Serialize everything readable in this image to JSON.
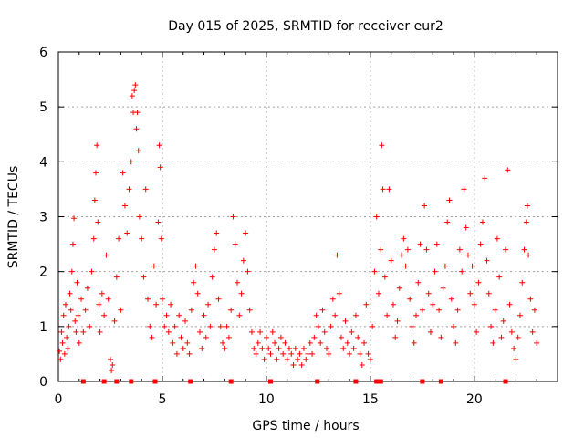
{
  "chart_data": {
    "type": "scatter",
    "title": "Day 015 of 2025, SRMTID for receiver eur2",
    "xlabel": "GPS time / hours",
    "ylabel": "SRMTID / TECUs",
    "xlim": [
      0,
      24
    ],
    "ylim": [
      0,
      6
    ],
    "xticks": [
      0,
      5,
      10,
      15,
      20
    ],
    "yticks": [
      0,
      1,
      2,
      3,
      4,
      5,
      6
    ],
    "grid": true,
    "marker": "+",
    "color": "#ff0000",
    "series": [
      {
        "name": "SRMTID",
        "points": [
          [
            0.05,
            0.55
          ],
          [
            0.1,
            0.4
          ],
          [
            0.15,
            0.9
          ],
          [
            0.2,
            0.7
          ],
          [
            0.25,
            1.2
          ],
          [
            0.3,
            0.5
          ],
          [
            0.35,
            1.4
          ],
          [
            0.4,
            0.8
          ],
          [
            0.45,
            0.6
          ],
          [
            0.5,
            1.0
          ],
          [
            0.55,
            1.6
          ],
          [
            0.6,
            1.3
          ],
          [
            0.65,
            2.0
          ],
          [
            0.7,
            2.5
          ],
          [
            0.75,
            2.97
          ],
          [
            0.8,
            1.1
          ],
          [
            0.85,
            0.9
          ],
          [
            0.9,
            1.8
          ],
          [
            0.95,
            1.2
          ],
          [
            1.0,
            0.7
          ],
          [
            1.1,
            1.5
          ],
          [
            1.2,
            0.9
          ],
          [
            1.3,
            1.3
          ],
          [
            1.4,
            1.7
          ],
          [
            1.5,
            1.0
          ],
          [
            1.6,
            2.0
          ],
          [
            1.7,
            2.6
          ],
          [
            1.75,
            3.3
          ],
          [
            1.8,
            3.8
          ],
          [
            1.85,
            4.3
          ],
          [
            1.9,
            2.9
          ],
          [
            1.95,
            1.4
          ],
          [
            2.0,
            0.9
          ],
          [
            2.1,
            1.6
          ],
          [
            2.2,
            1.2
          ],
          [
            2.3,
            2.3
          ],
          [
            2.4,
            1.5
          ],
          [
            2.5,
            0.4
          ],
          [
            2.55,
            0.2
          ],
          [
            2.6,
            0.3
          ],
          [
            2.7,
            1.1
          ],
          [
            2.8,
            1.9
          ],
          [
            2.9,
            2.6
          ],
          [
            3.0,
            1.3
          ],
          [
            3.1,
            3.8
          ],
          [
            3.2,
            3.2
          ],
          [
            3.3,
            2.7
          ],
          [
            3.4,
            3.5
          ],
          [
            3.5,
            4.0
          ],
          [
            3.55,
            5.2
          ],
          [
            3.6,
            4.9
          ],
          [
            3.65,
            5.3
          ],
          [
            3.7,
            5.4
          ],
          [
            3.75,
            4.6
          ],
          [
            3.8,
            4.9
          ],
          [
            3.85,
            4.2
          ],
          [
            3.9,
            3.0
          ],
          [
            4.0,
            2.6
          ],
          [
            4.1,
            1.9
          ],
          [
            4.2,
            3.5
          ],
          [
            4.3,
            1.5
          ],
          [
            4.4,
            1.0
          ],
          [
            4.5,
            0.8
          ],
          [
            4.6,
            2.1
          ],
          [
            4.7,
            1.4
          ],
          [
            4.8,
            2.9
          ],
          [
            4.85,
            4.3
          ],
          [
            4.9,
            3.9
          ],
          [
            4.95,
            2.6
          ],
          [
            5.0,
            1.5
          ],
          [
            5.1,
            1.0
          ],
          [
            5.2,
            1.2
          ],
          [
            5.3,
            0.9
          ],
          [
            5.4,
            1.4
          ],
          [
            5.5,
            0.7
          ],
          [
            5.6,
            1.0
          ],
          [
            5.7,
            0.5
          ],
          [
            5.8,
            1.2
          ],
          [
            5.9,
            0.8
          ],
          [
            6.0,
            0.6
          ],
          [
            6.1,
            1.1
          ],
          [
            6.2,
            0.7
          ],
          [
            6.3,
            0.5
          ],
          [
            6.4,
            1.3
          ],
          [
            6.5,
            1.8
          ],
          [
            6.6,
            2.1
          ],
          [
            6.7,
            1.6
          ],
          [
            6.8,
            0.9
          ],
          [
            6.9,
            0.6
          ],
          [
            7.0,
            1.2
          ],
          [
            7.1,
            0.8
          ],
          [
            7.2,
            1.4
          ],
          [
            7.3,
            1.0
          ],
          [
            7.4,
            1.9
          ],
          [
            7.5,
            2.4
          ],
          [
            7.6,
            2.7
          ],
          [
            7.7,
            1.5
          ],
          [
            7.8,
            1.0
          ],
          [
            7.9,
            0.7
          ],
          [
            8.0,
            0.6
          ],
          [
            8.1,
            1.0
          ],
          [
            8.2,
            0.8
          ],
          [
            8.3,
            1.3
          ],
          [
            8.4,
            3.0
          ],
          [
            8.5,
            2.5
          ],
          [
            8.6,
            1.8
          ],
          [
            8.7,
            1.2
          ],
          [
            8.8,
            1.6
          ],
          [
            8.9,
            2.2
          ],
          [
            9.0,
            2.7
          ],
          [
            9.1,
            2.0
          ],
          [
            9.2,
            1.3
          ],
          [
            9.3,
            0.9
          ],
          [
            9.4,
            0.6
          ],
          [
            9.5,
            0.5
          ],
          [
            9.6,
            0.7
          ],
          [
            9.7,
            0.9
          ],
          [
            9.8,
            0.6
          ],
          [
            9.9,
            0.4
          ],
          [
            10.0,
            0.8
          ],
          [
            10.1,
            0.6
          ],
          [
            10.2,
            0.5
          ],
          [
            10.3,
            0.9
          ],
          [
            10.4,
            0.7
          ],
          [
            10.5,
            0.4
          ],
          [
            10.6,
            0.6
          ],
          [
            10.7,
            0.8
          ],
          [
            10.8,
            0.5
          ],
          [
            10.9,
            0.7
          ],
          [
            11.0,
            0.4
          ],
          [
            11.1,
            0.6
          ],
          [
            11.2,
            0.5
          ],
          [
            11.3,
            0.3
          ],
          [
            11.4,
            0.6
          ],
          [
            11.5,
            0.4
          ],
          [
            11.6,
            0.5
          ],
          [
            11.7,
            0.3
          ],
          [
            11.8,
            0.6
          ],
          [
            11.9,
            0.4
          ],
          [
            12.0,
            0.5
          ],
          [
            12.1,
            0.7
          ],
          [
            12.2,
            0.5
          ],
          [
            12.3,
            0.8
          ],
          [
            12.4,
            1.2
          ],
          [
            12.5,
            1.0
          ],
          [
            12.6,
            0.7
          ],
          [
            12.7,
            1.3
          ],
          [
            12.8,
            0.9
          ],
          [
            12.9,
            0.6
          ],
          [
            13.0,
            0.5
          ],
          [
            13.1,
            1.0
          ],
          [
            13.2,
            1.5
          ],
          [
            13.3,
            1.2
          ],
          [
            13.4,
            2.3
          ],
          [
            13.5,
            1.6
          ],
          [
            13.6,
            0.8
          ],
          [
            13.7,
            0.6
          ],
          [
            13.8,
            1.1
          ],
          [
            13.9,
            0.7
          ],
          [
            14.0,
            0.5
          ],
          [
            14.1,
            0.9
          ],
          [
            14.2,
            0.6
          ],
          [
            14.3,
            1.2
          ],
          [
            14.4,
            0.8
          ],
          [
            14.5,
            0.5
          ],
          [
            14.6,
            0.3
          ],
          [
            14.7,
            0.7
          ],
          [
            14.8,
            1.4
          ],
          [
            14.9,
            0.5
          ],
          [
            15.0,
            0.4
          ],
          [
            15.1,
            1.0
          ],
          [
            15.2,
            2.0
          ],
          [
            15.3,
            3.0
          ],
          [
            15.4,
            1.6
          ],
          [
            15.5,
            2.4
          ],
          [
            15.55,
            4.3
          ],
          [
            15.6,
            3.5
          ],
          [
            15.7,
            1.9
          ],
          [
            15.8,
            1.2
          ],
          [
            15.9,
            3.5
          ],
          [
            16.0,
            2.2
          ],
          [
            16.1,
            1.4
          ],
          [
            16.2,
            0.8
          ],
          [
            16.3,
            1.1
          ],
          [
            16.4,
            1.7
          ],
          [
            16.5,
            2.3
          ],
          [
            16.6,
            2.6
          ],
          [
            16.7,
            2.1
          ],
          [
            16.8,
            2.4
          ],
          [
            16.9,
            1.5
          ],
          [
            17.0,
            1.0
          ],
          [
            17.1,
            0.7
          ],
          [
            17.2,
            1.2
          ],
          [
            17.3,
            1.8
          ],
          [
            17.4,
            2.5
          ],
          [
            17.5,
            1.3
          ],
          [
            17.6,
            3.2
          ],
          [
            17.7,
            2.4
          ],
          [
            17.8,
            1.6
          ],
          [
            17.9,
            0.9
          ],
          [
            18.0,
            1.4
          ],
          [
            18.1,
            2.0
          ],
          [
            18.2,
            2.5
          ],
          [
            18.3,
            1.3
          ],
          [
            18.4,
            0.8
          ],
          [
            18.5,
            1.7
          ],
          [
            18.6,
            2.1
          ],
          [
            18.7,
            2.9
          ],
          [
            18.8,
            3.3
          ],
          [
            18.9,
            1.5
          ],
          [
            19.0,
            1.0
          ],
          [
            19.1,
            0.7
          ],
          [
            19.2,
            1.3
          ],
          [
            19.3,
            2.4
          ],
          [
            19.4,
            2.0
          ],
          [
            19.5,
            3.5
          ],
          [
            19.6,
            2.8
          ],
          [
            19.7,
            2.3
          ],
          [
            19.8,
            1.6
          ],
          [
            19.9,
            2.1
          ],
          [
            20.0,
            1.4
          ],
          [
            20.1,
            0.9
          ],
          [
            20.2,
            1.8
          ],
          [
            20.3,
            2.5
          ],
          [
            20.4,
            2.9
          ],
          [
            20.5,
            3.7
          ],
          [
            20.6,
            2.2
          ],
          [
            20.7,
            1.6
          ],
          [
            20.8,
            1.0
          ],
          [
            20.9,
            0.7
          ],
          [
            21.0,
            1.3
          ],
          [
            21.1,
            2.6
          ],
          [
            21.2,
            1.9
          ],
          [
            21.3,
            0.8
          ],
          [
            21.4,
            1.1
          ],
          [
            21.5,
            2.4
          ],
          [
            21.6,
            3.85
          ],
          [
            21.7,
            1.4
          ],
          [
            21.8,
            0.9
          ],
          [
            21.9,
            0.6
          ],
          [
            22.0,
            0.4
          ],
          [
            22.1,
            0.8
          ],
          [
            22.2,
            1.2
          ],
          [
            22.3,
            1.8
          ],
          [
            22.4,
            2.4
          ],
          [
            22.5,
            2.9
          ],
          [
            22.55,
            3.2
          ],
          [
            22.6,
            2.3
          ],
          [
            22.7,
            1.5
          ],
          [
            22.8,
            0.9
          ],
          [
            22.9,
            1.3
          ],
          [
            23.0,
            0.7
          ]
        ],
        "markers_on_axis": [
          1.2,
          2.2,
          2.8,
          3.5,
          4.65,
          6.35,
          8.3,
          10.2,
          12.45,
          14.3,
          15.3,
          15.5,
          17.5,
          18.4,
          21.5
        ]
      }
    ]
  }
}
